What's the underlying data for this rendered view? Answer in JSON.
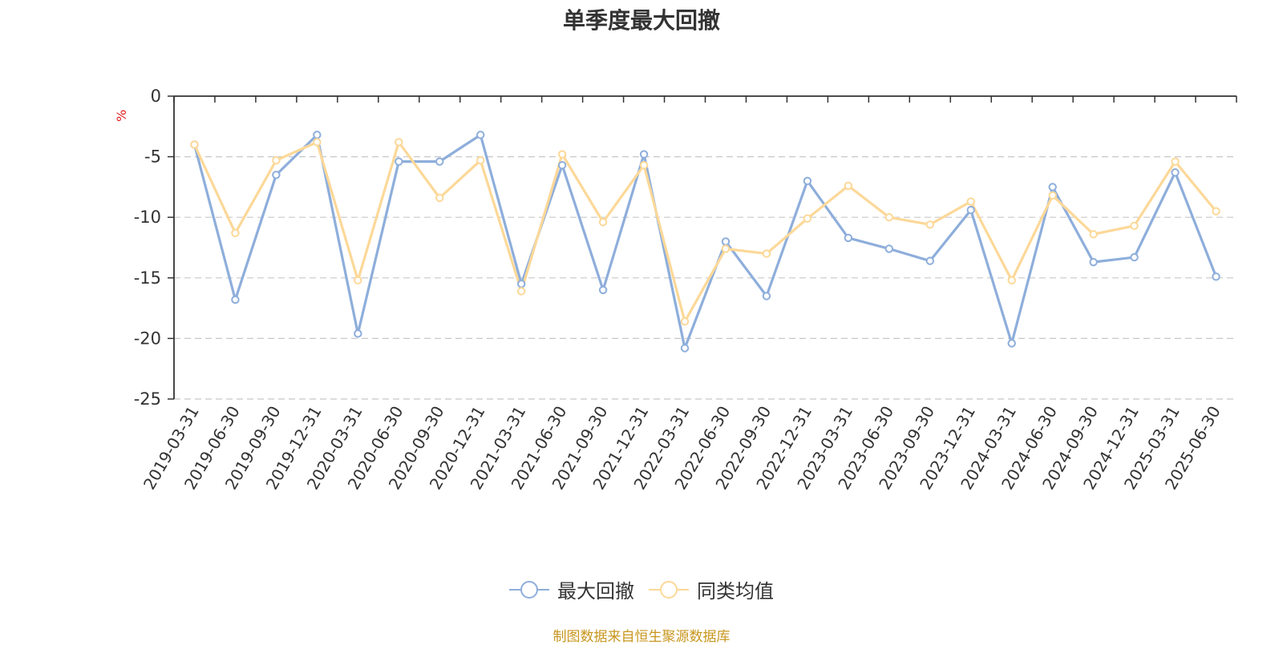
{
  "chart_data": {
    "type": "line",
    "title": "单季度最大回撤",
    "ylabel": "%",
    "ylim": [
      -25,
      0
    ],
    "yticks": [
      0,
      -5,
      -10,
      -15,
      -20,
      -25
    ],
    "grid": true,
    "legend_position": "bottom",
    "categories": [
      "2019-03-31",
      "2019-06-30",
      "2019-09-30",
      "2019-12-31",
      "2020-03-31",
      "2020-06-30",
      "2020-09-30",
      "2020-12-31",
      "2021-03-31",
      "2021-06-30",
      "2021-09-30",
      "2021-12-31",
      "2022-03-31",
      "2022-06-30",
      "2022-09-30",
      "2022-12-31",
      "2023-03-31",
      "2023-06-30",
      "2023-09-30",
      "2023-12-31",
      "2024-03-31",
      "2024-06-30",
      "2024-09-30",
      "2024-12-31",
      "2025-03-31",
      "2025-06-30"
    ],
    "series": [
      {
        "name": "最大回撤",
        "color": "#8eaedb",
        "values": [
          -4.0,
          -16.8,
          -6.5,
          -3.2,
          -19.6,
          -5.4,
          -5.4,
          -3.2,
          -15.5,
          -5.7,
          -16.0,
          -4.8,
          -20.8,
          -12.0,
          -16.5,
          -7.0,
          -11.7,
          -12.6,
          -13.6,
          -9.4,
          -20.4,
          -7.5,
          -13.7,
          -13.3,
          -6.3,
          -14.9
        ]
      },
      {
        "name": "同类均值",
        "color": "#fcd898",
        "values": [
          -4.0,
          -11.3,
          -5.3,
          -3.8,
          -15.2,
          -3.8,
          -8.4,
          -5.3,
          -16.1,
          -4.8,
          -10.4,
          -5.7,
          -18.6,
          -12.6,
          -13.0,
          -10.1,
          -7.4,
          -10.0,
          -10.6,
          -8.7,
          -15.2,
          -8.2,
          -11.4,
          -10.7,
          -5.4,
          -9.5
        ]
      }
    ]
  },
  "footer": {
    "source": "制图数据来自恒生聚源数据库"
  }
}
